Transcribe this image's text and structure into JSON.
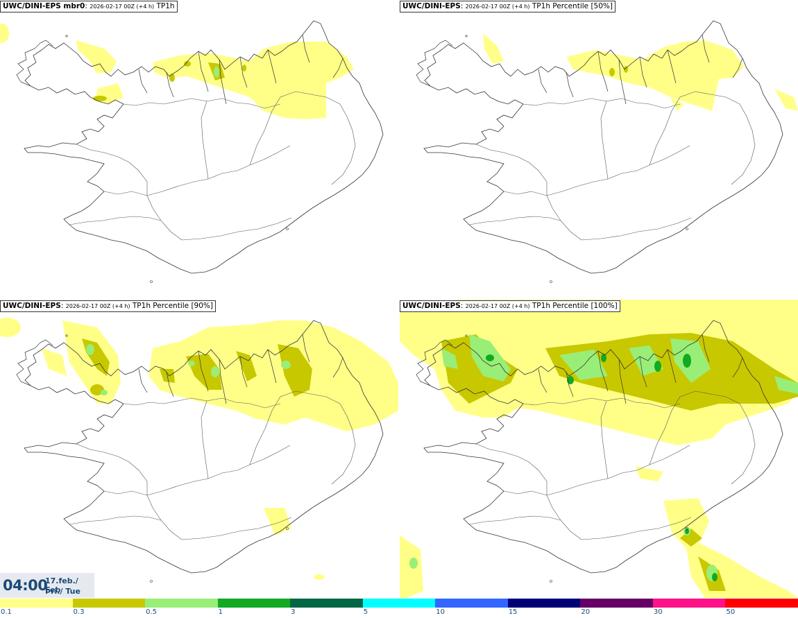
{
  "panels": [
    {
      "model": "UWC/DINI-EPS mbr0",
      "run": "2026-02-17 00Z (+4 h)",
      "field": "TP1h"
    },
    {
      "model": "UWC/DINI-EPS",
      "run": "2026-02-17 00Z (+4 h)",
      "field": "TP1h Percentile [50%]"
    },
    {
      "model": "UWC/DINI-EPS",
      "run": "2026-02-17 00Z (+4 h)",
      "field": "TP1h Percentile [90%]"
    },
    {
      "model": "UWC/DINI-EPS",
      "run": "2026-02-17 00Z (+4 h)",
      "field": "TP1h Percentile [100%]"
    }
  ],
  "valid_time": {
    "time": "04:00",
    "date": "17.feb./ Feb",
    "weekday": "Þri./ Tue"
  },
  "legend": {
    "colors": [
      "#ffff88",
      "#c8c800",
      "#99ee77",
      "#11aa22",
      "#006644",
      "#00ffff",
      "#3366ff",
      "#000077",
      "#660066",
      "#ff1188",
      "#ff0000"
    ],
    "ticks": [
      "0.1",
      "0.3",
      "0.5",
      "1",
      "3",
      "5",
      "10",
      "15",
      "20",
      "30",
      "50"
    ]
  }
}
